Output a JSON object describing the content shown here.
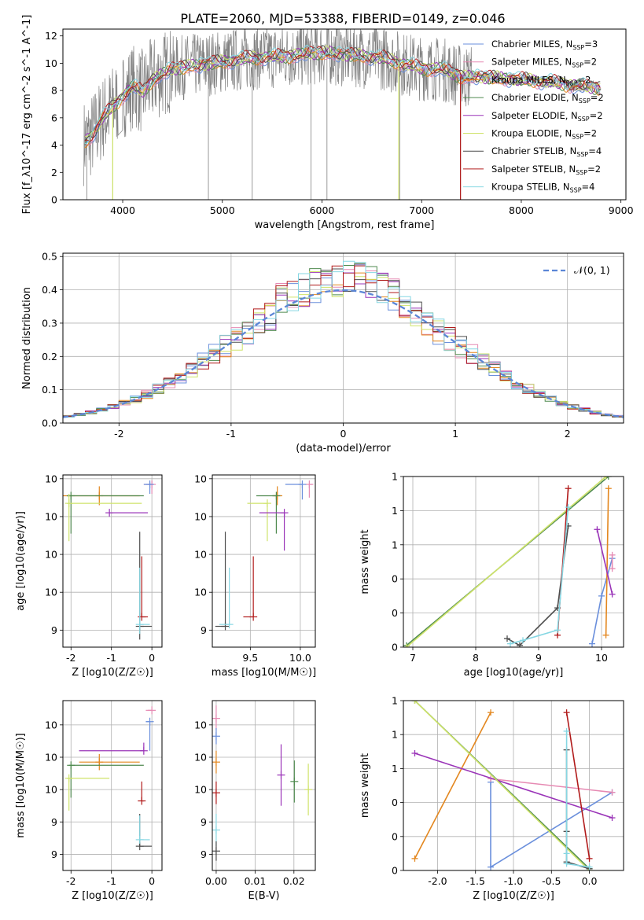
{
  "figure_title": "PLATE=2060, MJD=53388, FIBERID=0149, z=0.046",
  "colors": {
    "Chabrier MILES": "#6a8fdc",
    "Salpeter MILES": "#e68ab3",
    "Kroupa MILES": "#e3871f",
    "Chabrier ELODIE": "#4f8a4f",
    "Salpeter ELODIE": "#9a34b8",
    "Kroupa ELODIE": "#cfe36a",
    "Chabrier STELIB": "#4d4d4d",
    "Salpeter STELIB": "#b11b1b",
    "Kroupa STELIB": "#86d7e3",
    "data": "#808080",
    "gaussian": "#5b86d6"
  },
  "chart_data": [
    {
      "id": "spectrum",
      "type": "line",
      "title": "PLATE=2060, MJD=53388, FIBERID=0149, z=0.046",
      "xlabel": "wavelength [Angstrom, rest frame]",
      "ylabel": "Flux [f_λ10^-17 erg cm^-2 s^-1 A^-1]",
      "xlim": [
        3400,
        9050
      ],
      "ylim": [
        0,
        12.5
      ],
      "xticks": [
        4000,
        5000,
        6000,
        7000,
        8000,
        9000
      ],
      "yticks": [
        0,
        2,
        4,
        6,
        8,
        10,
        12
      ],
      "data_continuum": {
        "x": [
          3610,
          3700,
          3800,
          3900,
          4000,
          4100,
          4200,
          4300,
          4500,
          4800,
          5000,
          5300,
          5600,
          6000,
          6300,
          6600,
          7000,
          7200,
          7400,
          7600,
          7800,
          8000,
          8200,
          8400,
          8600,
          8800
        ],
        "y": [
          4.2,
          4.8,
          6.0,
          6.8,
          7.6,
          8.3,
          7.9,
          8.8,
          9.6,
          9.9,
          10.1,
          10.4,
          10.5,
          10.8,
          10.6,
          10.4,
          9.6,
          9.6,
          9.0,
          9.0,
          8.9,
          8.8,
          8.7,
          8.5,
          8.3,
          8.2
        ]
      },
      "legend": [
        "Chabrier MILES, N_SSP=3",
        "Salpeter MILES, N_SSP=2",
        "Kroupa MILES, N_SSP=2",
        "Chabrier ELODIE, N_SSP=2",
        "Salpeter ELODIE, N_SSP=2",
        "Kroupa ELODIE, N_SSP=2",
        "Chabrier STELIB, N_SSP=4",
        "Salpeter STELIB, N_SSP=2",
        "Kroupa STELIB, N_SSP=4"
      ],
      "legend_placement": "top-right"
    },
    {
      "id": "residuals",
      "type": "step",
      "xlabel": "(data-model)/error",
      "ylabel": "Normed distribution",
      "xlim": [
        -2.5,
        2.5
      ],
      "ylim": [
        0,
        0.51
      ],
      "xticks": [
        -2,
        -1,
        0,
        1,
        2
      ],
      "yticks": [
        0.0,
        0.1,
        0.2,
        0.3,
        0.4,
        0.5
      ],
      "bin_width": 0.1,
      "gaussian_label": "𝒩(0, 1)",
      "legend_placement": "top-right"
    },
    {
      "id": "age_vs_Z",
      "type": "errorbar",
      "xlabel": "Z [log10(Z/Z☉)]",
      "ylabel": "age  [log10(age/yr)]",
      "xlim": [
        -2.2,
        0.25
      ],
      "ylim": [
        9.31,
        10.22
      ],
      "xticks": [
        -2,
        -1,
        0
      ],
      "yticks": [
        9.4,
        9.6,
        9.8,
        10.0,
        10.2
      ],
      "points": [
        {
          "model": "Salpeter MILES",
          "x": 0.0,
          "y": 10.17,
          "xerr": [
            0.2,
            0.0
          ],
          "yerr": [
            0.05,
            0.02
          ]
        },
        {
          "model": "Chabrier MILES",
          "x": -0.05,
          "y": 10.17,
          "xerr": [
            0.15,
            0.0
          ],
          "yerr": [
            0.05,
            0.01
          ]
        },
        {
          "model": "Kroupa MILES",
          "x": -1.3,
          "y": 10.11,
          "xerr": [
            0.9,
            1.0
          ],
          "yerr": [
            0.05,
            0.05
          ]
        },
        {
          "model": "Chabrier ELODIE",
          "x": -2.0,
          "y": 10.11,
          "xerr": [
            0.1,
            1.8
          ],
          "yerr": [
            0.2,
            0.0
          ]
        },
        {
          "model": "Kroupa ELODIE",
          "x": -2.05,
          "y": 10.07,
          "xerr": [
            0.05,
            1.8
          ],
          "yerr": [
            0.2,
            0.05
          ]
        },
        {
          "model": "Salpeter ELODIE",
          "x": -1.05,
          "y": 10.02,
          "xerr": [
            0.0,
            0.95
          ],
          "yerr": [
            0.0,
            0.0
          ]
        },
        {
          "model": "Chabrier STELIB",
          "x": -0.3,
          "y": 9.42,
          "xerr": [
            0.0,
            0.3
          ],
          "yerr": [
            0.07,
            0.5
          ]
        },
        {
          "model": "Salpeter STELIB",
          "x": -0.25,
          "y": 9.47,
          "xerr": [
            0.0,
            0.15
          ],
          "yerr": [
            0.0,
            0.32
          ]
        },
        {
          "model": "Kroupa STELIB",
          "x": -0.3,
          "y": 9.43,
          "xerr": [
            0.0,
            0.25
          ],
          "yerr": [
            0.05,
            0.3
          ]
        }
      ]
    },
    {
      "id": "age_vs_mass",
      "type": "errorbar",
      "xlabel": "mass [log10(M/M☉)]",
      "ylabel": "",
      "xlim": [
        9.12,
        10.15
      ],
      "ylim": [
        9.31,
        10.22
      ],
      "xticks": [
        9.5,
        10.0
      ],
      "yticks": [
        9.4,
        9.6,
        9.8,
        10.0,
        10.2
      ],
      "points": [
        {
          "model": "Salpeter MILES",
          "x": 10.09,
          "y": 10.17,
          "xerr": [
            0.0,
            0.03
          ],
          "yerr": [
            0.07,
            0.0
          ]
        },
        {
          "model": "Chabrier MILES",
          "x": 10.02,
          "y": 10.17,
          "xerr": [
            0.17,
            0.0
          ],
          "yerr": [
            0.08,
            0.0
          ]
        },
        {
          "model": "Kroupa MILES",
          "x": 9.77,
          "y": 10.11,
          "xerr": [
            0.05,
            0.05
          ],
          "yerr": [
            0.05,
            0.05
          ]
        },
        {
          "model": "Chabrier ELODIE",
          "x": 9.76,
          "y": 10.11,
          "xerr": [
            0.2,
            0.0
          ],
          "yerr": [
            0.2,
            0.0
          ]
        },
        {
          "model": "Kroupa ELODIE",
          "x": 9.67,
          "y": 10.07,
          "xerr": [
            0.2,
            0.0
          ],
          "yerr": [
            0.2,
            0.0
          ]
        },
        {
          "model": "Salpeter ELODIE",
          "x": 9.84,
          "y": 10.02,
          "xerr": [
            0.25,
            0.0
          ],
          "yerr": [
            0.2,
            0.0
          ]
        },
        {
          "model": "Chabrier STELIB",
          "x": 9.25,
          "y": 9.42,
          "xerr": [
            0.1,
            0.0
          ],
          "yerr": [
            0.0,
            0.5
          ]
        },
        {
          "model": "Salpeter STELIB",
          "x": 9.53,
          "y": 9.47,
          "xerr": [
            0.1,
            0.0
          ],
          "yerr": [
            0.0,
            0.32
          ]
        },
        {
          "model": "Kroupa STELIB",
          "x": 9.29,
          "y": 9.43,
          "xerr": [
            0.1,
            0.0
          ],
          "yerr": [
            0.0,
            0.3
          ]
        }
      ]
    },
    {
      "id": "weight_vs_age",
      "type": "line",
      "xlabel": "age  [log10(age/yr)]",
      "ylabel": "mass weight",
      "xlim": [
        6.85,
        10.35
      ],
      "ylim": [
        0,
        1.0
      ],
      "xticks": [
        7,
        8,
        9,
        10
      ],
      "yticks": [
        0.0,
        0.2,
        0.4,
        0.6,
        0.8,
        1.0
      ],
      "series": [
        {
          "model": "Chabrier MILES",
          "x": [
            9.85,
            10.0,
            10.17
          ],
          "y": [
            0.02,
            0.3,
            0.52
          ]
        },
        {
          "model": "Salpeter MILES",
          "x": [
            10.17,
            10.17
          ],
          "y": [
            0.54,
            0.46
          ]
        },
        {
          "model": "Kroupa MILES",
          "x": [
            10.07,
            10.11
          ],
          "y": [
            0.07,
            0.93
          ]
        },
        {
          "model": "Chabrier ELODIE",
          "x": [
            6.9,
            10.11
          ],
          "y": [
            0.01,
            1.0
          ]
        },
        {
          "model": "Salpeter ELODIE",
          "x": [
            9.93,
            10.17
          ],
          "y": [
            0.69,
            0.31
          ]
        },
        {
          "model": "Kroupa ELODIE",
          "x": [
            6.9,
            10.07
          ],
          "y": [
            0.0,
            1.0
          ]
        },
        {
          "model": "Chabrier STELIB",
          "x": [
            8.5,
            8.7,
            9.3,
            9.47
          ],
          "y": [
            0.05,
            0.01,
            0.23,
            0.71
          ]
        },
        {
          "model": "Salpeter STELIB",
          "x": [
            9.3,
            9.47
          ],
          "y": [
            0.07,
            0.93
          ]
        },
        {
          "model": "Kroupa STELIB",
          "x": [
            8.55,
            8.75,
            9.3,
            9.47
          ],
          "y": [
            0.02,
            0.04,
            0.1,
            0.82
          ]
        }
      ]
    },
    {
      "id": "mass_vs_Z",
      "type": "errorbar",
      "xlabel": "Z [log10(Z/Z☉)]",
      "ylabel": "mass [log10(M/M☉)]",
      "xlim": [
        -2.2,
        0.25
      ],
      "ylim": [
        9.1,
        10.15
      ],
      "xticks": [
        -2,
        -1,
        0
      ],
      "yticks": [
        9.2,
        9.4,
        9.6,
        9.8,
        10.0
      ],
      "points": [
        {
          "model": "Salpeter MILES",
          "x": 0.0,
          "y": 10.09,
          "xerr": [
            0.15,
            0.0
          ],
          "yerr": [
            0.0,
            0.0
          ]
        },
        {
          "model": "Chabrier MILES",
          "x": -0.05,
          "y": 10.02,
          "xerr": [
            0.1,
            0.0
          ],
          "yerr": [
            0.18,
            0.0
          ]
        },
        {
          "model": "Kroupa MILES",
          "x": -1.3,
          "y": 9.77,
          "xerr": [
            0.5,
            1.0
          ],
          "yerr": [
            0.05,
            0.05
          ]
        },
        {
          "model": "Chabrier ELODIE",
          "x": -2.0,
          "y": 9.75,
          "xerr": [
            0.05,
            1.8
          ],
          "yerr": [
            0.2,
            0.0
          ]
        },
        {
          "model": "Kroupa ELODIE",
          "x": -2.05,
          "y": 9.67,
          "xerr": [
            0.05,
            1.0
          ],
          "yerr": [
            0.2,
            0.0
          ]
        },
        {
          "model": "Salpeter ELODIE",
          "x": -0.2,
          "y": 9.84,
          "xerr": [
            1.6,
            0.0
          ],
          "yerr": [
            0.0,
            0.05
          ]
        },
        {
          "model": "Chabrier STELIB",
          "x": -0.3,
          "y": 9.25,
          "xerr": [
            0.0,
            0.3
          ],
          "yerr": [
            0.0,
            0.2
          ]
        },
        {
          "model": "Salpeter STELIB",
          "x": -0.25,
          "y": 9.53,
          "xerr": [
            0.0,
            0.05
          ],
          "yerr": [
            0.0,
            0.12
          ]
        },
        {
          "model": "Kroupa STELIB",
          "x": -0.3,
          "y": 9.29,
          "xerr": [
            0.0,
            0.25
          ],
          "yerr": [
            0.0,
            0.15
          ]
        }
      ]
    },
    {
      "id": "mass_vs_ebv",
      "type": "errorbar",
      "xlabel": "E(B-V)",
      "ylabel": "",
      "xlim": [
        -0.001,
        0.0255
      ],
      "ylim": [
        9.1,
        10.15
      ],
      "xticks": [
        0.0,
        0.01,
        0.02
      ],
      "yticks": [
        9.2,
        9.4,
        9.6,
        9.8,
        10.0
      ],
      "points": [
        {
          "model": "Salpeter MILES",
          "x": 0.0,
          "y": 10.04,
          "xerr": [
            0,
            0
          ],
          "yerr": [
            0.07,
            0.08
          ]
        },
        {
          "model": "Kroupa MILES",
          "x": 0.0,
          "y": 9.77,
          "xerr": [
            0,
            0
          ],
          "yerr": [
            0.07,
            0.07
          ]
        },
        {
          "model": "Chabrier MILES",
          "x": 0.0,
          "y": 9.93,
          "xerr": [
            0,
            0
          ],
          "yerr": [
            0.05,
            0.05
          ]
        },
        {
          "model": "Salpeter STELIB",
          "x": 0.0,
          "y": 9.58,
          "xerr": [
            0,
            0
          ],
          "yerr": [
            0.07,
            0.07
          ]
        },
        {
          "model": "Kroupa STELIB",
          "x": 0.0,
          "y": 9.35,
          "xerr": [
            0,
            0
          ],
          "yerr": [
            0.1,
            0.1
          ]
        },
        {
          "model": "Chabrier STELIB",
          "x": 0.0,
          "y": 9.22,
          "xerr": [
            0,
            0
          ],
          "yerr": [
            0.06,
            0.06
          ]
        },
        {
          "model": "Salpeter ELODIE",
          "x": 0.0167,
          "y": 9.69,
          "xerr": [
            0,
            0
          ],
          "yerr": [
            0.19,
            0.19
          ]
        },
        {
          "model": "Chabrier ELODIE",
          "x": 0.0201,
          "y": 9.65,
          "xerr": [
            0,
            0
          ],
          "yerr": [
            0.13,
            0.13
          ]
        },
        {
          "model": "Kroupa ELODIE",
          "x": 0.0237,
          "y": 9.6,
          "xerr": [
            0,
            0
          ],
          "yerr": [
            0.16,
            0.16
          ]
        }
      ]
    },
    {
      "id": "weight_vs_Z",
      "type": "line",
      "xlabel": "Z [log10(Z/Z☉)]",
      "ylabel": "mass weight",
      "xlim": [
        -2.45,
        0.45
      ],
      "ylim": [
        0,
        1.0
      ],
      "xticks": [
        -2.0,
        -1.5,
        -1.0,
        -0.5,
        0.0
      ],
      "yticks": [
        0.0,
        0.2,
        0.4,
        0.6,
        0.8,
        1.0
      ],
      "series": [
        {
          "model": "Chabrier MILES",
          "x": [
            -1.3,
            -1.3,
            0.3
          ],
          "y": [
            0.52,
            0.02,
            0.46
          ]
        },
        {
          "model": "Salpeter MILES",
          "x": [
            -1.3,
            0.3
          ],
          "y": [
            0.54,
            0.46
          ]
        },
        {
          "model": "Kroupa MILES",
          "x": [
            -2.3,
            -1.3
          ],
          "y": [
            0.07,
            0.93
          ]
        },
        {
          "model": "Chabrier ELODIE",
          "x": [
            -2.3,
            0.0
          ],
          "y": [
            1.0,
            0.01
          ]
        },
        {
          "model": "Salpeter ELODIE",
          "x": [
            -2.3,
            0.3
          ],
          "y": [
            0.69,
            0.31
          ]
        },
        {
          "model": "Kroupa ELODIE",
          "x": [
            -2.3,
            0.0
          ],
          "y": [
            1.0,
            0.0
          ]
        },
        {
          "model": "Chabrier STELIB",
          "x": [
            -0.3,
            -0.3,
            -0.3,
            0.0
          ],
          "y": [
            0.71,
            0.23,
            0.05,
            0.01
          ]
        },
        {
          "model": "Salpeter STELIB",
          "x": [
            -0.3,
            0.0
          ],
          "y": [
            0.93,
            0.07
          ]
        },
        {
          "model": "Kroupa STELIB",
          "x": [
            -0.3,
            -0.3,
            -0.3,
            0.0
          ],
          "y": [
            0.82,
            0.1,
            0.04,
            0.02
          ]
        }
      ]
    }
  ]
}
